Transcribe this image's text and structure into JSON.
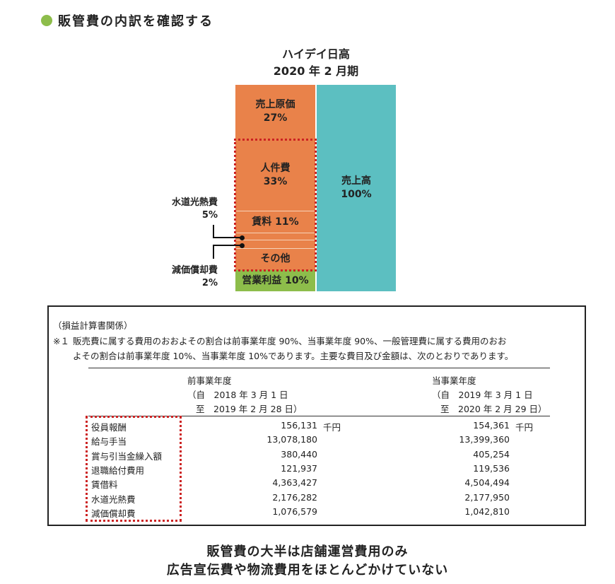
{
  "heading": "販管費の内訳を確認する",
  "chart": {
    "company": "ハイデイ日高",
    "period": "2020 年 2 月期",
    "cost_of_sales": {
      "label": "売上原価",
      "pct": "27%"
    },
    "personnel": {
      "label": "人件費",
      "pct": "33%"
    },
    "rent": "賃料 11%",
    "other": "その他",
    "operating_profit": "営業利益 10%",
    "sales": {
      "label": "売上高",
      "pct": "100%"
    },
    "utilities": {
      "label": "水道光熱費",
      "pct": "5%"
    },
    "depreciation": {
      "label": "減価償却費",
      "pct": "2%"
    },
    "colors": {
      "orange": "#e9824a",
      "teal": "#5cbfc1",
      "green": "#8dbd4b",
      "dotted_frame": "#cc2222"
    }
  },
  "note": {
    "header": "（損益計算書関係）",
    "mark": "※１",
    "line1": "販売費に属する費用のおおよその割合は前事業年度 90%、当事業年度 90%、一般管理費に属する費用のおお",
    "line2": "よその割合は前事業年度 10%、当事業年度 10%であります。主要な費目及び金額は、次のとおりであります。",
    "prev_year": {
      "title": "前事業年度",
      "from": "（自　2018 年 3 月 1 日",
      "to": "至　2019 年 2 月 28 日）"
    },
    "curr_year": {
      "title": "当事業年度",
      "from": "（自　2019 年 3 月 1 日",
      "to": "至　2020 年 2 月 29 日）"
    },
    "unit": "千円",
    "rows": [
      {
        "item": "役員報酬",
        "prev": "156,131",
        "curr": "154,361"
      },
      {
        "item": "給与手当",
        "prev": "13,078,180",
        "curr": "13,399,360"
      },
      {
        "item": "賞与引当金繰入額",
        "prev": "380,440",
        "curr": "405,254"
      },
      {
        "item": "退職給付費用",
        "prev": "121,937",
        "curr": "119,536"
      },
      {
        "item": "賃借料",
        "prev": "4,363,427",
        "curr": "4,504,494"
      },
      {
        "item": "水道光熱費",
        "prev": "2,176,282",
        "curr": "2,177,950"
      },
      {
        "item": "減価償却費",
        "prev": "1,076,579",
        "curr": "1,042,810"
      }
    ]
  },
  "footer": {
    "line1": "販管費の大半は店舗運営費用のみ",
    "line2": "広告宣伝費や物流費用をほとんどかけていない"
  }
}
